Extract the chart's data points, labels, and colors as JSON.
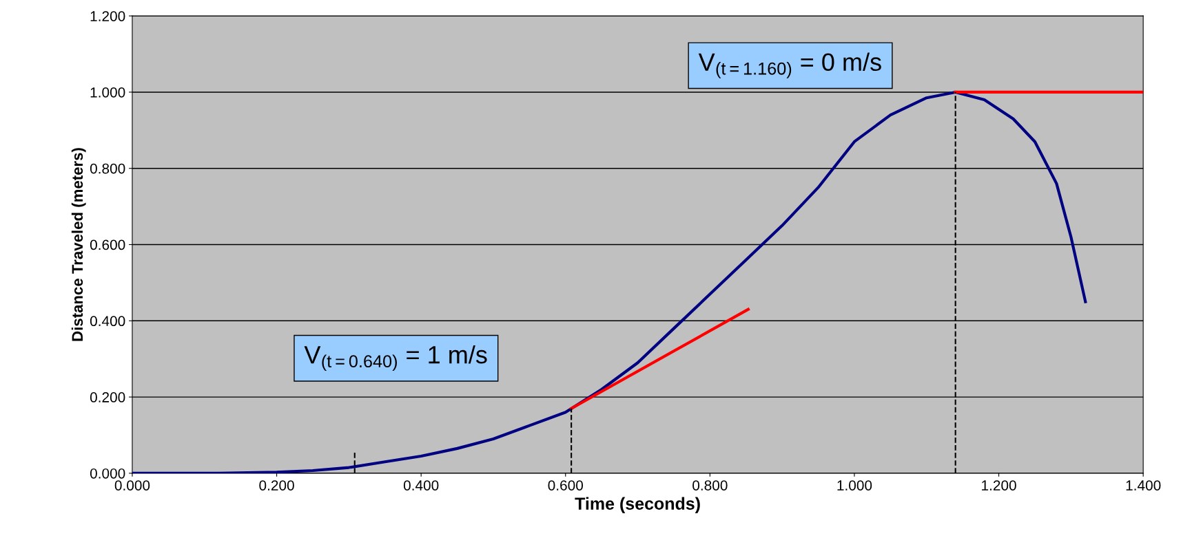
{
  "chart_data": {
    "type": "line",
    "xlabel": "Time (seconds)",
    "ylabel": "Distance Traveled (meters)",
    "xlim": [
      0,
      1.4
    ],
    "ylim": [
      0,
      1.2
    ],
    "xticks": [
      {
        "value": 0,
        "label": "0.000"
      },
      {
        "value": 0.2,
        "label": "0.200"
      },
      {
        "value": 0.4,
        "label": "0.400"
      },
      {
        "value": 0.6,
        "label": "0.600"
      },
      {
        "value": 0.8,
        "label": "0.800"
      },
      {
        "value": 1.0,
        "label": "1.000"
      },
      {
        "value": 1.2,
        "label": "1.200"
      },
      {
        "value": 1.4,
        "label": "1.400"
      }
    ],
    "yticks": [
      {
        "value": 0,
        "label": "0.000"
      },
      {
        "value": 0.2,
        "label": "0.200"
      },
      {
        "value": 0.4,
        "label": "0.400"
      },
      {
        "value": 0.6,
        "label": "0.600"
      },
      {
        "value": 0.8,
        "label": "0.800"
      },
      {
        "value": 1.0,
        "label": "1.000"
      },
      {
        "value": 1.2,
        "label": "1.200"
      }
    ],
    "grid": "y",
    "legend": false,
    "marker": "none",
    "series": [
      {
        "color": "#000080",
        "line_style": "solid",
        "x": [
          0,
          0.12,
          0.2,
          0.25,
          0.3,
          0.35,
          0.4,
          0.45,
          0.5,
          0.55,
          0.6,
          0.65,
          0.7,
          0.75,
          0.8,
          0.85,
          0.9,
          0.95,
          1.0,
          1.05,
          1.1,
          1.14,
          1.18,
          1.22,
          1.25,
          1.28,
          1.3,
          1.32
        ],
        "values": [
          0,
          0,
          0.003,
          0.007,
          0.015,
          0.03,
          0.045,
          0.065,
          0.09,
          0.125,
          0.16,
          0.22,
          0.29,
          0.38,
          0.47,
          0.56,
          0.65,
          0.75,
          0.87,
          0.94,
          0.985,
          1.0,
          0.98,
          0.93,
          0.87,
          0.76,
          0.62,
          0.45
        ]
      },
      {
        "color": "#ff0000",
        "line_style": "solid",
        "x": [
          0.608,
          0.853
        ],
        "values": [
          0.17,
          0.43
        ]
      },
      {
        "color": "#ff0000",
        "line_style": "solid",
        "x": [
          1.14,
          1.4
        ],
        "values": [
          1.0,
          1.0
        ]
      },
      {
        "color": "#000000",
        "line_style": "dashed",
        "x": [
          0.308,
          0.308
        ],
        "values": [
          0,
          0.06
        ]
      },
      {
        "color": "#000000",
        "line_style": "dashed",
        "x": [
          0.608,
          0.608
        ],
        "values": [
          0,
          0.17
        ]
      },
      {
        "color": "#000000",
        "line_style": "dashed",
        "x": [
          1.14,
          1.14
        ],
        "values": [
          0,
          1.0
        ]
      }
    ],
    "annotations": [
      "V$_{(t=0.640)}$ = 1 m/s",
      "V$_{(t=1.160)}$ = 0 m/s"
    ]
  }
}
